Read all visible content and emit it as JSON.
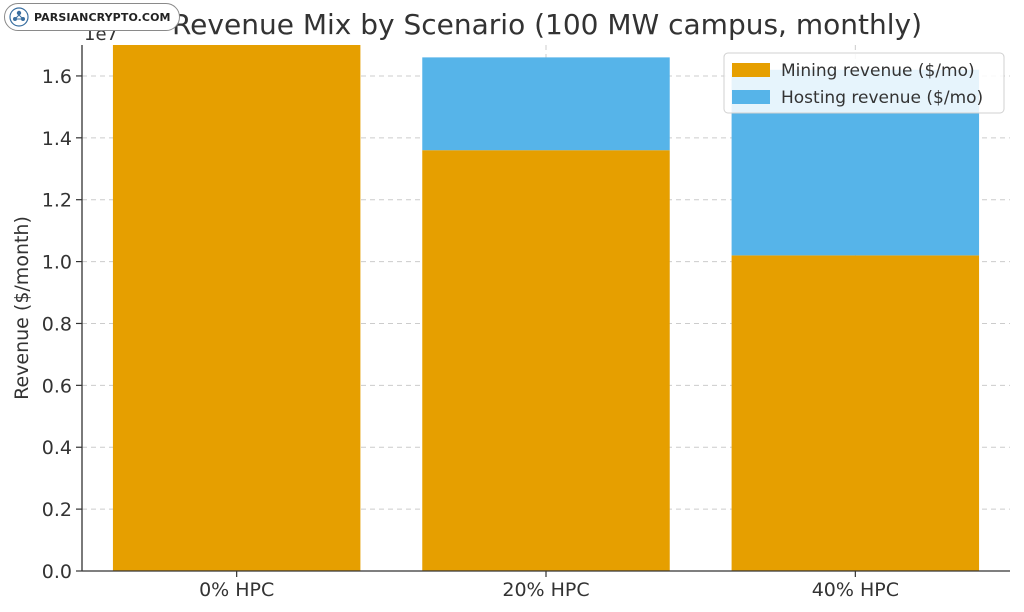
{
  "watermark": {
    "text": "PARSIANCRYPTO.COM",
    "icon": "parsiancrypto-logo-icon"
  },
  "chart_data": {
    "type": "bar",
    "stacked": true,
    "title": "Revenue Mix by Scenario (100 MW campus, monthly)",
    "xlabel": "",
    "ylabel": "Revenue ($/month)",
    "y_offset_label": "1e7",
    "ylim": [
      0,
      17000000
    ],
    "yticks": [
      0,
      2000000,
      4000000,
      6000000,
      8000000,
      10000000,
      12000000,
      14000000,
      16000000
    ],
    "ytick_labels": [
      "0.0",
      "0.2",
      "0.4",
      "0.6",
      "0.8",
      "1.0",
      "1.2",
      "1.4",
      "1.6"
    ],
    "categories": [
      "0% HPC",
      "20% HPC",
      "40% HPC"
    ],
    "series": [
      {
        "name": "Mining revenue ($/mo)",
        "color": "#e69f00",
        "values": [
          17000000,
          13600000,
          10200000
        ]
      },
      {
        "name": "Hosting revenue ($/mo)",
        "color": "#56b4e9",
        "values": [
          0,
          3000000,
          6000000
        ]
      }
    ],
    "grid": true,
    "legend_position": "top-right"
  }
}
